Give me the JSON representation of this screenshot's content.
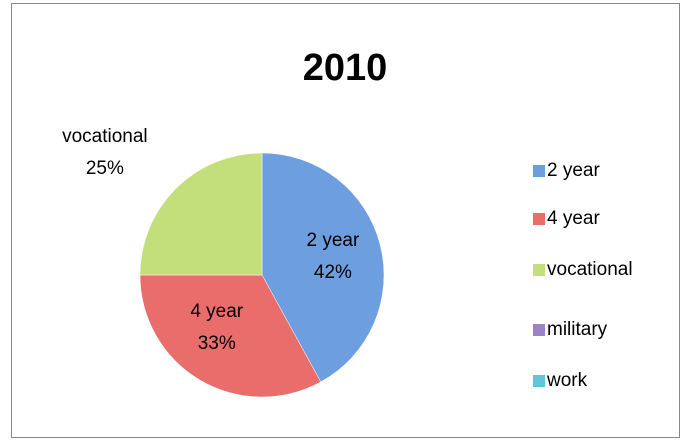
{
  "chart_data": {
    "type": "pie",
    "title": "2010",
    "categories": [
      "2 year",
      "4 year",
      "vocational",
      "military",
      "work"
    ],
    "values": [
      42,
      33,
      25,
      0,
      0
    ],
    "value_labels": [
      "42%",
      "33%",
      "25%",
      null,
      null
    ],
    "colors": [
      "#6d9fe0",
      "#e86d6b",
      "#c3df7c",
      "#9c82c6",
      "#5ec8da"
    ],
    "legend": "right"
  }
}
